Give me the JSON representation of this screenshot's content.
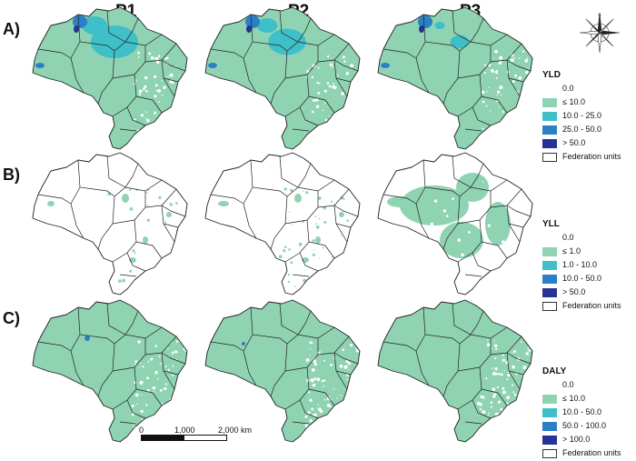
{
  "columns": [
    "P1",
    "P2",
    "P3"
  ],
  "rows": [
    {
      "label": "A)",
      "measure": "YLD"
    },
    {
      "label": "B)",
      "measure": "YLL"
    },
    {
      "label": "C)",
      "measure": "DALY"
    }
  ],
  "colors": {
    "class0": "#ffffff",
    "class1": "#8fd3b2",
    "class2": "#3fbfc8",
    "class3": "#2b7fc7",
    "class4": "#253494",
    "boundary": "#222222"
  },
  "legends": [
    {
      "title": "YLD",
      "items": [
        "0.0",
        "≤ 10.0",
        "10.0 - 25.0",
        "25.0 - 50.0",
        "> 50.0",
        "Federation units"
      ]
    },
    {
      "title": "YLL",
      "items": [
        "0.0",
        "≤ 1.0",
        "1.0 - 10.0",
        "10.0 - 50.0",
        "> 50.0",
        "Federation units"
      ]
    },
    {
      "title": "DALY",
      "items": [
        "0.0",
        "≤ 10.0",
        "10.0 - 50.0",
        "50.0 - 100.0",
        "> 100.0",
        "Federation units"
      ]
    }
  ],
  "scale_bar": {
    "ticks": [
      "0",
      "1,000",
      "2,000 km"
    ]
  },
  "north_arrow": {
    "icon": "compass-rose-icon"
  }
}
